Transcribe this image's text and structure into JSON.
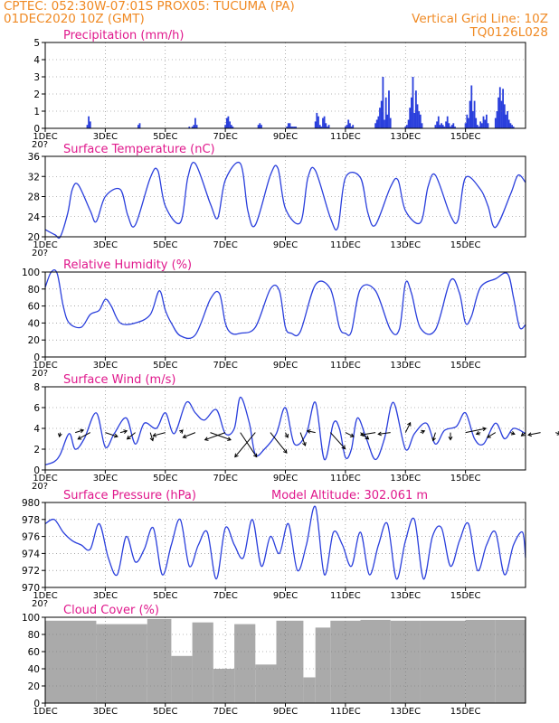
{
  "header": {
    "line1_left": "CPTEC:   052:30W-07:01S   PROX05: TUCUMA (PA)",
    "line2_left": "01DEC2020 10Z (GMT)",
    "line2_right": "Vertical Grid Line: 10Z",
    "line3_right": "TQ0126L028"
  },
  "colors": {
    "header": "#f08a24",
    "titles": "#e0188c",
    "line": "#2a3fdc",
    "cloud": "#aaaaaa"
  },
  "x_axis": {
    "labels": [
      "1DEC",
      "3DEC",
      "5DEC",
      "7DEC",
      "9DEC",
      "11DEC",
      "13DEC",
      "15DEC"
    ],
    "cut_label": "20?"
  },
  "chart_data": [
    {
      "id": "precip",
      "type": "bar",
      "title": "Precipitation (mm/h)",
      "ylim": [
        0,
        5
      ],
      "yticks": [
        "0",
        "1",
        "2",
        "3",
        "4",
        "5"
      ],
      "x_days": [
        1.4,
        1.45,
        1.5,
        3.1,
        3.15,
        4.8,
        4.9,
        4.95,
        5.0,
        5.05,
        6.0,
        6.05,
        6.1,
        6.15,
        6.2,
        6.25,
        7.1,
        7.15,
        7.2,
        8.05,
        8.1,
        8.15,
        8.2,
        8.25,
        8.3,
        8.35,
        9.0,
        9.05,
        9.1,
        9.15,
        9.2,
        9.25,
        9.3,
        9.35,
        9.4,
        9.45,
        10.0,
        10.05,
        10.1,
        10.15,
        10.2,
        10.25,
        11.0,
        11.05,
        11.1,
        11.15,
        11.2,
        11.25,
        11.3,
        11.35,
        11.4,
        11.45,
        11.5,
        12.0,
        12.05,
        12.1,
        12.15,
        12.2,
        12.25,
        12.3,
        12.35,
        12.4,
        12.45,
        12.5,
        12.55,
        13.0,
        13.05,
        13.1,
        13.15,
        13.2,
        13.25,
        13.3,
        13.35,
        13.4,
        13.45,
        13.5,
        13.55,
        13.6,
        13.65,
        14.0,
        14.05,
        14.1,
        14.15,
        14.2,
        14.25,
        14.3,
        14.35,
        14.4,
        14.45,
        14.5,
        14.55,
        14.6,
        14.65,
        14.7,
        14.75,
        15.0,
        15.05,
        15.1,
        15.15,
        15.2,
        15.25,
        15.3,
        15.35,
        15.4,
        15.45,
        15.5,
        15.55,
        15.6
      ],
      "values": [
        0.2,
        0.7,
        0.4,
        0.2,
        0.3,
        0.1,
        0.1,
        0.2,
        0.6,
        0.2,
        0.2,
        0.6,
        0.7,
        0.4,
        0.2,
        0.1,
        0.2,
        0.3,
        0.2,
        0.1,
        0.3,
        0.3,
        0.1,
        0.1,
        0.1,
        0.1,
        0.4,
        0.9,
        0.7,
        0.2,
        0.1,
        0.6,
        0.7,
        0.3,
        0.1,
        0.2,
        0.1,
        0.2,
        0.5,
        0.3,
        0.1,
        0.2,
        0.3,
        0.5,
        0.7,
        1.2,
        1.6,
        3.0,
        0.5,
        1.8,
        0.8,
        2.2,
        0.6,
        0.1,
        0.2,
        0.5,
        1.2,
        1.8,
        3.0,
        0.9,
        2.2,
        1.4,
        1.0,
        0.8,
        0.3,
        0.2,
        0.4,
        0.7,
        0.2,
        0.3,
        0.2,
        0.1,
        0.4,
        0.7,
        0.3,
        0.1,
        0.2,
        0.3,
        0.1,
        0.3,
        0.8,
        0.6,
        1.6,
        2.5,
        1.0,
        1.6,
        0.6,
        0.2,
        0.1,
        0.4,
        0.3,
        0.7,
        0.5,
        0.8,
        0.3,
        0.6,
        1.0,
        1.8,
        2.4,
        1.6,
        2.3,
        1.4,
        0.8,
        1.0,
        0.5,
        0.3,
        0.2,
        0.1
      ]
    },
    {
      "id": "temp",
      "type": "line",
      "title": "Surface Temperature (nC)",
      "ylim": [
        20,
        37
      ],
      "yticks": [
        "20",
        "24",
        "28",
        "32",
        "36"
      ],
      "x_days": [
        0,
        0.33,
        0.5,
        0.75,
        0.9,
        1.1,
        1.5,
        1.7,
        2.0,
        2.5,
        2.75,
        3.0,
        3.5,
        3.75,
        4.0,
        4.5,
        4.75,
        5.0,
        5.5,
        5.75,
        6.0,
        6.5,
        6.75,
        7.0,
        7.5,
        7.75,
        8.0,
        8.5,
        8.75,
        9.0,
        9.5,
        9.75,
        10.0,
        10.5,
        10.75,
        11.0,
        11.5,
        11.75,
        12.0,
        12.5,
        12.75,
        13.0,
        13.5,
        13.75,
        14.0,
        14.5,
        14.75,
        15.0,
        15.5,
        15.75,
        16.0
      ],
      "values": [
        21.5,
        20.4,
        20.0,
        25.0,
        30.0,
        31.0,
        25.5,
        23.2,
        28.5,
        30.0,
        24.5,
        22.5,
        32.5,
        34.0,
        26.5,
        23.0,
        32.5,
        35.5,
        27.0,
        24.0,
        32.0,
        35.5,
        25.5,
        22.5,
        33.0,
        34.5,
        26.0,
        23.0,
        32.5,
        34.0,
        24.0,
        22.0,
        32.5,
        32.5,
        25.0,
        22.5,
        30.5,
        32.0,
        25.5,
        23.0,
        30.5,
        33.0,
        24.5,
        23.5,
        32.5,
        30.0,
        26.5,
        22.0,
        29.0,
        33.0,
        31.5
      ]
    },
    {
      "id": "rh",
      "type": "line",
      "title": "Relative Humidity (%)",
      "ylim": [
        0,
        100
      ],
      "yticks": [
        "0",
        "20",
        "40",
        "60",
        "80",
        "100"
      ],
      "x_days": [
        0,
        0.2,
        0.4,
        0.6,
        0.8,
        1.2,
        1.5,
        1.8,
        2.0,
        2.2,
        2.5,
        3.0,
        3.5,
        3.8,
        4.0,
        4.2,
        4.5,
        5.0,
        5.5,
        5.8,
        6.0,
        6.2,
        6.5,
        7.0,
        7.5,
        7.8,
        8.0,
        8.2,
        8.5,
        9.0,
        9.5,
        9.8,
        10.0,
        10.2,
        10.5,
        11.0,
        11.5,
        11.8,
        12.0,
        12.2,
        12.5,
        13.0,
        13.5,
        13.8,
        14.0,
        14.2,
        14.5,
        15.0,
        15.4,
        15.6,
        15.8,
        16.0
      ],
      "values": [
        82,
        100,
        98,
        60,
        40,
        35,
        50,
        55,
        68,
        60,
        40,
        40,
        50,
        78,
        55,
        40,
        25,
        26,
        68,
        75,
        40,
        28,
        28,
        35,
        80,
        78,
        35,
        28,
        30,
        85,
        80,
        35,
        28,
        30,
        80,
        78,
        32,
        33,
        87,
        75,
        34,
        32,
        90,
        75,
        40,
        48,
        82,
        92,
        98,
        70,
        35,
        38
      ]
    },
    {
      "id": "wind",
      "type": "line",
      "title": "Surface Wind (m/s)",
      "ylim": [
        0,
        8
      ],
      "yticks": [
        "0",
        "2",
        "4",
        "6",
        "8"
      ],
      "x_days": [
        0,
        0.3,
        0.5,
        0.8,
        1.0,
        1.3,
        1.7,
        2.0,
        2.3,
        2.7,
        3.0,
        3.3,
        3.7,
        4.0,
        4.3,
        4.7,
        5.0,
        5.3,
        5.7,
        6.0,
        6.3,
        6.5,
        6.8,
        7.0,
        7.3,
        7.7,
        8.0,
        8.3,
        8.7,
        9.0,
        9.3,
        9.6,
        9.8,
        10.0,
        10.2,
        10.4,
        10.7,
        11.0,
        11.3,
        11.6,
        12.0,
        12.3,
        12.7,
        13.0,
        13.3,
        13.7,
        14.0,
        14.3,
        14.6,
        15.0,
        15.3,
        15.6,
        16.0
      ],
      "values": [
        0.5,
        0.8,
        1.5,
        3.5,
        2.0,
        3.0,
        5.5,
        2.2,
        3.5,
        5.0,
        2.5,
        4.5,
        4.0,
        5.5,
        3.5,
        6.5,
        5.5,
        4.8,
        5.8,
        3.5,
        4.0,
        7.0,
        4.5,
        1.5,
        2.0,
        3.5,
        6.0,
        2.5,
        3.5,
        6.5,
        1.0,
        4.5,
        4.0,
        1.2,
        2.0,
        5.0,
        3.0,
        1.0,
        3.0,
        6.5,
        2.0,
        3.5,
        4.5,
        2.5,
        3.8,
        4.2,
        5.5,
        3.0,
        2.5,
        4.5,
        3.0,
        4.0,
        3.5
      ],
      "arrows_start_day": 0.5,
      "arrows_step_days": 0.5,
      "arrows_u": [
        -0.1,
        1.0,
        -1.5,
        1.5,
        0.8,
        -1.0,
        0.3,
        -1.5,
        0.3,
        -1.5,
        2.5,
        -2.5,
        2.0,
        -2.5,
        2.0,
        0.3,
        0.6,
        -1.0,
        1.8,
        1.0,
        1.0,
        -1.8,
        -1.5,
        0.6,
        0.5,
        -0.3,
        0.0,
        2.5,
        -0.5,
        -1.0,
        0.5,
        -0.5,
        -1.5,
        0.6,
        -1.0,
        -0.8
      ],
      "arrows_v": [
        0.5,
        -0.3,
        0.8,
        0.5,
        -0.2,
        0.8,
        1.0,
        0.4,
        -0.3,
        0.6,
        0.9,
        0.9,
        3.0,
        3.0,
        2.5,
        0.6,
        1.6,
        -0.2,
        2.0,
        0.5,
        0.8,
        0.3,
        0.2,
        -1.2,
        -0.2,
        1.0,
        0.9,
        -0.5,
        0.2,
        0.6,
        0.2,
        0.4,
        0.3,
        0.2,
        0.2,
        0.5
      ]
    },
    {
      "id": "pres",
      "type": "line",
      "title": "Surface Pressure (hPa)",
      "subtitle": "Model Altitude: 302.061  m",
      "ylim": [
        970,
        980
      ],
      "yticks": [
        "970",
        "972",
        "974",
        "976",
        "978",
        "980"
      ],
      "x_days": [
        0,
        0.3,
        0.6,
        0.9,
        1.2,
        1.5,
        1.8,
        2.1,
        2.4,
        2.7,
        3.0,
        3.3,
        3.6,
        3.9,
        4.2,
        4.5,
        4.8,
        5.1,
        5.4,
        5.7,
        6.0,
        6.3,
        6.6,
        6.9,
        7.2,
        7.5,
        7.8,
        8.1,
        8.4,
        8.7,
        9.0,
        9.3,
        9.6,
        9.9,
        10.2,
        10.5,
        10.8,
        11.1,
        11.4,
        11.7,
        12.0,
        12.3,
        12.6,
        12.9,
        13.2,
        13.5,
        13.8,
        14.1,
        14.4,
        14.7,
        15.0,
        15.3,
        15.6,
        15.9,
        16.0
      ],
      "values": [
        977.5,
        978.0,
        976.5,
        975.5,
        975.0,
        974.5,
        977.5,
        973.5,
        971.5,
        976.0,
        973.0,
        974.5,
        977.0,
        971.5,
        975.0,
        978.0,
        972.5,
        975.0,
        976.5,
        971.0,
        977.0,
        975.0,
        973.5,
        978.0,
        972.5,
        976.0,
        974.0,
        977.5,
        972.0,
        975.0,
        979.5,
        971.5,
        976.5,
        975.0,
        972.5,
        976.5,
        971.5,
        975.0,
        977.5,
        971.0,
        975.5,
        978.0,
        971.0,
        976.0,
        977.0,
        972.5,
        975.5,
        977.5,
        972.0,
        975.0,
        976.5,
        971.5,
        975.0,
        976.5,
        973.5
      ]
    },
    {
      "id": "cloud",
      "type": "bar",
      "title": "Cloud Cover (%)",
      "ylim": [
        0,
        100
      ],
      "yticks": [
        "0",
        "20",
        "40",
        "60",
        "80",
        "100"
      ],
      "segments_days": [
        [
          0,
          1.7
        ],
        [
          1.7,
          3.4
        ],
        [
          3.4,
          4.2
        ],
        [
          4.2,
          4.9
        ],
        [
          4.9,
          5.6
        ],
        [
          5.6,
          6.3
        ],
        [
          6.3,
          7.0
        ],
        [
          7.0,
          7.7
        ],
        [
          7.7,
          8.6
        ],
        [
          8.6,
          9.0
        ],
        [
          9.0,
          9.5
        ],
        [
          9.5,
          10.5
        ],
        [
          10.5,
          11.5
        ],
        [
          11.5,
          12.5
        ],
        [
          12.5,
          14.0
        ],
        [
          14.0,
          15.0
        ],
        [
          15.0,
          16.0
        ]
      ],
      "segments_values": [
        96,
        92,
        98,
        55,
        94,
        40,
        92,
        45,
        96,
        30,
        88,
        96,
        97,
        96,
        96,
        97,
        97
      ]
    }
  ]
}
